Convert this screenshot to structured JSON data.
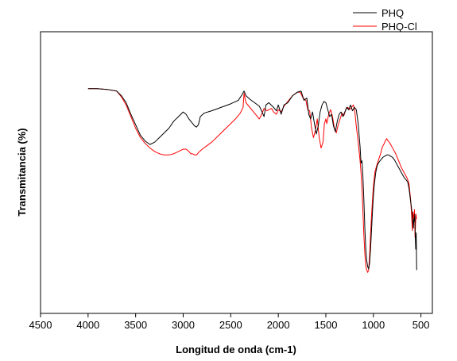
{
  "chart_data": {
    "type": "line",
    "title": "",
    "xlabel": "Longitud de onda (cm-1)",
    "ylabel": "Transmitancia (%)",
    "xlim": [
      4500,
      380
    ],
    "x_reversed": true,
    "x_ticks": [
      4500,
      4000,
      3500,
      3000,
      2500,
      2000,
      1500,
      1000,
      500
    ],
    "y_ticks_shown": false,
    "ylim": [
      0,
      100
    ],
    "grid": false,
    "legend_position": "top-right",
    "series": [
      {
        "name": "PHQ",
        "color": "#000000",
        "points": [
          [
            4000,
            83
          ],
          [
            3900,
            83
          ],
          [
            3800,
            82.7
          ],
          [
            3700,
            82
          ],
          [
            3650,
            80
          ],
          [
            3600,
            77
          ],
          [
            3550,
            72
          ],
          [
            3500,
            67.5
          ],
          [
            3450,
            63
          ],
          [
            3400,
            60.5
          ],
          [
            3350,
            59
          ],
          [
            3300,
            60
          ],
          [
            3250,
            62
          ],
          [
            3200,
            64
          ],
          [
            3150,
            66
          ],
          [
            3100,
            69
          ],
          [
            3050,
            71
          ],
          [
            3000,
            73
          ],
          [
            2970,
            72
          ],
          [
            2940,
            70
          ],
          [
            2920,
            69
          ],
          [
            2900,
            68
          ],
          [
            2880,
            67
          ],
          [
            2860,
            66.5
          ],
          [
            2840,
            67.5
          ],
          [
            2820,
            71
          ],
          [
            2780,
            72.5
          ],
          [
            2700,
            73.5
          ],
          [
            2600,
            75
          ],
          [
            2500,
            76.5
          ],
          [
            2420,
            78
          ],
          [
            2380,
            80.5
          ],
          [
            2360,
            82
          ],
          [
            2340,
            80
          ],
          [
            2300,
            78.5
          ],
          [
            2250,
            77
          ],
          [
            2200,
            75.5
          ],
          [
            2170,
            73
          ],
          [
            2150,
            71
          ],
          [
            2130,
            76
          ],
          [
            2100,
            77
          ],
          [
            2050,
            75
          ],
          [
            2020,
            73.5
          ],
          [
            2000,
            76
          ],
          [
            1970,
            72
          ],
          [
            1940,
            76
          ],
          [
            1900,
            77
          ],
          [
            1850,
            80
          ],
          [
            1800,
            81.5
          ],
          [
            1760,
            82
          ],
          [
            1730,
            78
          ],
          [
            1700,
            79
          ],
          [
            1680,
            72
          ],
          [
            1660,
            70
          ],
          [
            1640,
            73
          ],
          [
            1620,
            68
          ],
          [
            1600,
            63.5
          ],
          [
            1580,
            67
          ],
          [
            1560,
            73
          ],
          [
            1540,
            76
          ],
          [
            1520,
            77.5
          ],
          [
            1500,
            77
          ],
          [
            1480,
            74
          ],
          [
            1460,
            71
          ],
          [
            1440,
            72
          ],
          [
            1420,
            67
          ],
          [
            1400,
            64.5
          ],
          [
            1380,
            69
          ],
          [
            1360,
            72
          ],
          [
            1340,
            73
          ],
          [
            1320,
            71
          ],
          [
            1300,
            73
          ],
          [
            1280,
            75
          ],
          [
            1260,
            74
          ],
          [
            1240,
            76
          ],
          [
            1220,
            73.5
          ],
          [
            1200,
            75
          ],
          [
            1180,
            74
          ],
          [
            1160,
            68
          ],
          [
            1140,
            58
          ],
          [
            1130,
            51
          ],
          [
            1120,
            52
          ],
          [
            1110,
            45
          ],
          [
            1100,
            35
          ],
          [
            1090,
            23
          ],
          [
            1080,
            14
          ],
          [
            1070,
            9
          ],
          [
            1060,
            6.5
          ],
          [
            1050,
            5.5
          ],
          [
            1040,
            8
          ],
          [
            1030,
            14
          ],
          [
            1020,
            22
          ],
          [
            1010,
            30
          ],
          [
            1000,
            37
          ],
          [
            990,
            42
          ],
          [
            975,
            47
          ],
          [
            960,
            50
          ],
          [
            940,
            51.5
          ],
          [
            920,
            52.5
          ],
          [
            900,
            53.5
          ],
          [
            880,
            54
          ],
          [
            860,
            54.5
          ],
          [
            840,
            54.5
          ],
          [
            820,
            54
          ],
          [
            800,
            53.5
          ],
          [
            780,
            52.5
          ],
          [
            760,
            51
          ],
          [
            740,
            49.5
          ],
          [
            720,
            48
          ],
          [
            700,
            46.5
          ],
          [
            680,
            45
          ],
          [
            660,
            44
          ],
          [
            640,
            43
          ],
          [
            625,
            40
          ],
          [
            610,
            35
          ],
          [
            600,
            32
          ],
          [
            590,
            28
          ],
          [
            580,
            23
          ],
          [
            575,
            27
          ],
          [
            570,
            26
          ],
          [
            565,
            29
          ],
          [
            560,
            20
          ],
          [
            555,
            14
          ],
          [
            550,
            21
          ],
          [
            545,
            5
          ]
        ]
      },
      {
        "name": "PHQ-Cl",
        "color": "#ff0000",
        "points": [
          [
            4000,
            83
          ],
          [
            3900,
            83
          ],
          [
            3800,
            82.7
          ],
          [
            3700,
            82
          ],
          [
            3650,
            79.5
          ],
          [
            3600,
            76
          ],
          [
            3550,
            71
          ],
          [
            3500,
            66
          ],
          [
            3450,
            62
          ],
          [
            3400,
            59.5
          ],
          [
            3350,
            57.5
          ],
          [
            3300,
            56
          ],
          [
            3250,
            55
          ],
          [
            3200,
            54.5
          ],
          [
            3150,
            54.5
          ],
          [
            3100,
            55
          ],
          [
            3050,
            56
          ],
          [
            3000,
            57
          ],
          [
            2970,
            57
          ],
          [
            2940,
            56
          ],
          [
            2920,
            55
          ],
          [
            2900,
            55
          ],
          [
            2880,
            54.5
          ],
          [
            2860,
            54.5
          ],
          [
            2840,
            55.5
          ],
          [
            2800,
            57
          ],
          [
            2750,
            58.5
          ],
          [
            2700,
            60
          ],
          [
            2650,
            62
          ],
          [
            2600,
            64
          ],
          [
            2550,
            66
          ],
          [
            2500,
            68
          ],
          [
            2450,
            70
          ],
          [
            2400,
            72.5
          ],
          [
            2370,
            75
          ],
          [
            2360,
            81
          ],
          [
            2340,
            77
          ],
          [
            2300,
            75
          ],
          [
            2260,
            73
          ],
          [
            2220,
            71
          ],
          [
            2200,
            70
          ],
          [
            2180,
            71.5
          ],
          [
            2150,
            74.5
          ],
          [
            2120,
            73.5
          ],
          [
            2100,
            74
          ],
          [
            2070,
            74.5
          ],
          [
            2050,
            73
          ],
          [
            2020,
            72
          ],
          [
            2000,
            74
          ],
          [
            1970,
            73
          ],
          [
            1940,
            75.5
          ],
          [
            1900,
            77.5
          ],
          [
            1850,
            80
          ],
          [
            1800,
            81.5
          ],
          [
            1770,
            81.5
          ],
          [
            1740,
            79
          ],
          [
            1710,
            78
          ],
          [
            1690,
            74
          ],
          [
            1670,
            73.5
          ],
          [
            1650,
            66
          ],
          [
            1630,
            62
          ],
          [
            1610,
            65
          ],
          [
            1590,
            70
          ],
          [
            1570,
            62
          ],
          [
            1550,
            57.5
          ],
          [
            1530,
            60
          ],
          [
            1515,
            68
          ],
          [
            1500,
            70
          ],
          [
            1490,
            68
          ],
          [
            1470,
            72
          ],
          [
            1450,
            74
          ],
          [
            1430,
            71
          ],
          [
            1410,
            66
          ],
          [
            1390,
            64
          ],
          [
            1370,
            67.5
          ],
          [
            1350,
            70
          ],
          [
            1330,
            72.5
          ],
          [
            1310,
            71.5
          ],
          [
            1290,
            74
          ],
          [
            1270,
            75
          ],
          [
            1250,
            74
          ],
          [
            1230,
            75
          ],
          [
            1210,
            76
          ],
          [
            1195,
            73
          ],
          [
            1180,
            67
          ],
          [
            1160,
            60
          ],
          [
            1140,
            52
          ],
          [
            1130,
            47
          ],
          [
            1120,
            40
          ],
          [
            1110,
            30
          ],
          [
            1100,
            20
          ],
          [
            1090,
            12
          ],
          [
            1080,
            7
          ],
          [
            1070,
            5
          ],
          [
            1060,
            4
          ],
          [
            1050,
            5
          ],
          [
            1040,
            11
          ],
          [
            1030,
            20
          ],
          [
            1020,
            28
          ],
          [
            1010,
            35
          ],
          [
            1000,
            41
          ],
          [
            985,
            47
          ],
          [
            965,
            50
          ],
          [
            945,
            52.5
          ],
          [
            925,
            55
          ],
          [
            905,
            58
          ],
          [
            885,
            59.5
          ],
          [
            870,
            61
          ],
          [
            860,
            61.5
          ],
          [
            845,
            60.5
          ],
          [
            825,
            59.5
          ],
          [
            805,
            58
          ],
          [
            785,
            56.5
          ],
          [
            765,
            55
          ],
          [
            745,
            53
          ],
          [
            725,
            51
          ],
          [
            705,
            49
          ],
          [
            685,
            47.5
          ],
          [
            665,
            46
          ],
          [
            645,
            44.5
          ],
          [
            625,
            42
          ],
          [
            610,
            36
          ],
          [
            600,
            30
          ],
          [
            590,
            22
          ],
          [
            585,
            30
          ],
          [
            575,
            27
          ],
          [
            568,
            31
          ],
          [
            562,
            19
          ],
          [
            557,
            25
          ],
          [
            552,
            29
          ],
          [
            547,
            27
          ]
        ]
      }
    ]
  }
}
